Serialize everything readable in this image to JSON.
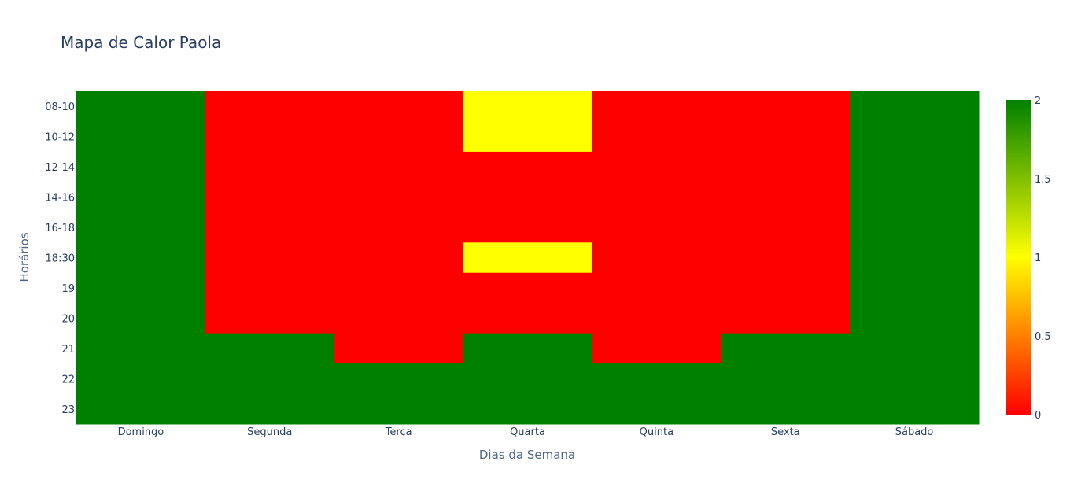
{
  "chart_data": {
    "type": "heatmap",
    "title": "Mapa de Calor Paola",
    "xlabel": "Dias da Semana",
    "ylabel": "Horários",
    "x": [
      "Domingo",
      "Segunda",
      "Terça",
      "Quarta",
      "Quinta",
      "Sexta",
      "Sábado"
    ],
    "y": [
      "08-10",
      "10-12",
      "12-14",
      "14-16",
      "16-18",
      "18:30",
      "19",
      "20",
      "21",
      "22",
      "23"
    ],
    "z": [
      [
        2,
        0,
        0,
        1,
        0,
        0,
        2
      ],
      [
        2,
        0,
        0,
        1,
        0,
        0,
        2
      ],
      [
        2,
        0,
        0,
        0,
        0,
        0,
        2
      ],
      [
        2,
        0,
        0,
        0,
        0,
        0,
        2
      ],
      [
        2,
        0,
        0,
        0,
        0,
        0,
        2
      ],
      [
        2,
        0,
        0,
        1,
        0,
        0,
        2
      ],
      [
        2,
        0,
        0,
        0,
        0,
        0,
        2
      ],
      [
        2,
        0,
        0,
        0,
        0,
        0,
        2
      ],
      [
        2,
        2,
        0,
        2,
        0,
        2,
        2
      ],
      [
        2,
        2,
        2,
        2,
        2,
        2,
        2
      ],
      [
        2,
        2,
        2,
        2,
        2,
        2,
        2
      ]
    ],
    "zrange": [
      0,
      2
    ],
    "colorscale": [
      [
        0,
        "#ff0000"
      ],
      [
        0.5,
        "#ffff00"
      ],
      [
        1,
        "#008000"
      ]
    ],
    "colorbar": {
      "ticks": [
        0,
        0.5,
        1,
        1.5,
        2
      ],
      "tick_labels": [
        "0",
        "0.5",
        "1",
        "1.5",
        "2"
      ]
    },
    "y_direction": "top-to-bottom"
  }
}
